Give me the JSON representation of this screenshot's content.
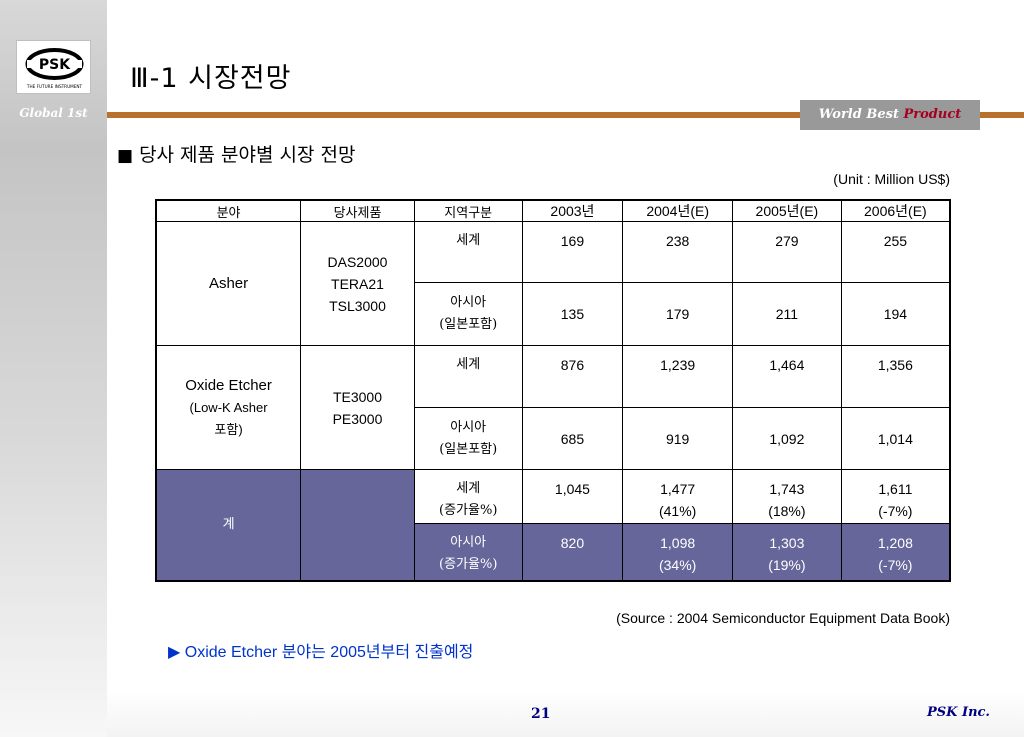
{
  "logo": {
    "mark": "PSK",
    "slogan": "THE FUTURE INSTRUMENT"
  },
  "sidebar": {
    "tagline": "Global 1st"
  },
  "header": {
    "title": "Ⅲ-1  시장전망",
    "badge_prefix": "World Best ",
    "badge_accent": "Product",
    "accent_color": "#b8722c"
  },
  "section": {
    "bullet": "■",
    "title": "당사 제품 분야별 시장 전망"
  },
  "unit_note": "(Unit : Million US$)",
  "table": {
    "headers": [
      "분야",
      "당사제품",
      "지역구분",
      "2003년",
      "2004년(E)",
      "2005년(E)",
      "2006년(E)"
    ],
    "groups": [
      {
        "field": "Asher",
        "field_sub": "",
        "products": "DAS2000\nTERA21\nTSL3000",
        "rows": [
          {
            "region": "세계",
            "values": [
              "169",
              "238",
              "279",
              "255"
            ]
          },
          {
            "region": "아시아\n(일본포함)",
            "values": [
              "135",
              "179",
              "211",
              "194"
            ]
          }
        ]
      },
      {
        "field": "Oxide Etcher",
        "field_sub": "(Low-K Asher\n포함)",
        "products": "TE3000\nPE3000",
        "rows": [
          {
            "region": "세계",
            "values": [
              "876",
              "1,239",
              "1,464",
              "1,356"
            ]
          },
          {
            "region": "아시아\n(일본포함)",
            "values": [
              "685",
              "919",
              "1,092",
              "1,014"
            ]
          }
        ]
      }
    ],
    "total": {
      "label": "계",
      "rows": [
        {
          "region": "세계\n(증가율%)",
          "values": [
            "1,045",
            "1,477\n(41%)",
            "1,743\n(18%)",
            "1,611\n(-7%)"
          ]
        },
        {
          "region": "아시아\n(증가율%)",
          "values": [
            "820",
            "1,098\n(34%)",
            "1,303\n(19%)",
            "1,208\n(-7%)"
          ]
        }
      ],
      "shade_color": "#66669a"
    }
  },
  "source_note": "(Source : 2004 Semiconductor Equipment Data Book)",
  "highlight_note": {
    "arrow": "▶",
    "text": "Oxide Etcher 분야는 2005년부터 진출예정",
    "color": "#0033cc"
  },
  "footer": {
    "page_number": "21",
    "company": "PSK Inc."
  }
}
